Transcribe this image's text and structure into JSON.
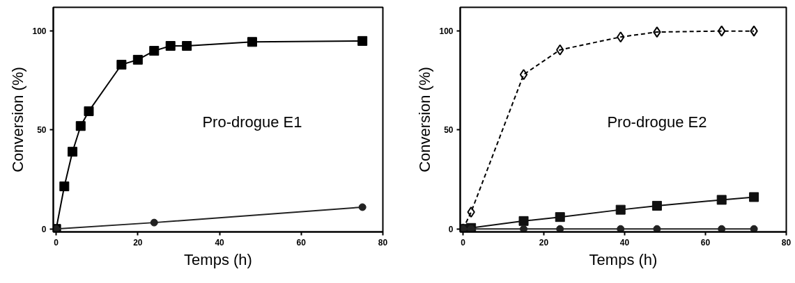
{
  "chart_data": [
    {
      "type": "line",
      "xlabel": "Temps (h)",
      "ylabel": "Conversion (%)",
      "annotations": [
        "Pro-drogue E1"
      ],
      "xlim": [
        -0.7,
        80
      ],
      "ylim": [
        -1.5,
        112
      ],
      "xticks": [
        0,
        20,
        40,
        60,
        80
      ],
      "yticks": [
        0,
        50,
        100
      ],
      "grid": false,
      "series": [
        {
          "color": "#000000",
          "marker": "square",
          "line_style": "solid",
          "x": [
            0,
            2,
            4,
            6,
            8,
            16,
            20,
            24,
            28,
            32,
            48,
            75
          ],
          "values": [
            0,
            21.5,
            39,
            52,
            59.5,
            83,
            85.5,
            90,
            92.5,
            92.5,
            94.5,
            95
          ]
        },
        {
          "color": "#222222",
          "marker": "circle",
          "line_style": "solid",
          "x": [
            0,
            24,
            75
          ],
          "values": [
            0,
            3.2,
            11
          ]
        }
      ]
    },
    {
      "type": "line",
      "xlabel": "Temps (h)",
      "ylabel": "Conversion (%)",
      "annotations": [
        "Pro-drogue E2"
      ],
      "xlim": [
        -0.7,
        80
      ],
      "ylim": [
        -1.5,
        112
      ],
      "xticks": [
        0,
        20,
        40,
        60,
        80
      ],
      "yticks": [
        0,
        50,
        100
      ],
      "grid": false,
      "series": [
        {
          "color": "#000000",
          "marker": "diamond",
          "line_style": "dashed",
          "x": [
            0,
            2,
            15,
            24,
            39,
            48,
            64,
            72
          ],
          "values": [
            0,
            8.5,
            78,
            90.5,
            97,
            99.5,
            100,
            100
          ]
        },
        {
          "color": "#111111",
          "marker": "square",
          "line_style": "solid",
          "x": [
            0,
            2,
            15,
            24,
            39,
            48,
            64,
            72
          ],
          "values": [
            0,
            0.5,
            4,
            6,
            9.7,
            11.7,
            14.7,
            16.1
          ]
        },
        {
          "color": "#222222",
          "marker": "circle",
          "line_style": "solid",
          "x": [
            0,
            2,
            15,
            24,
            39,
            48,
            64,
            72
          ],
          "values": [
            0,
            0,
            0,
            0,
            0,
            0,
            0,
            0
          ]
        }
      ]
    }
  ]
}
